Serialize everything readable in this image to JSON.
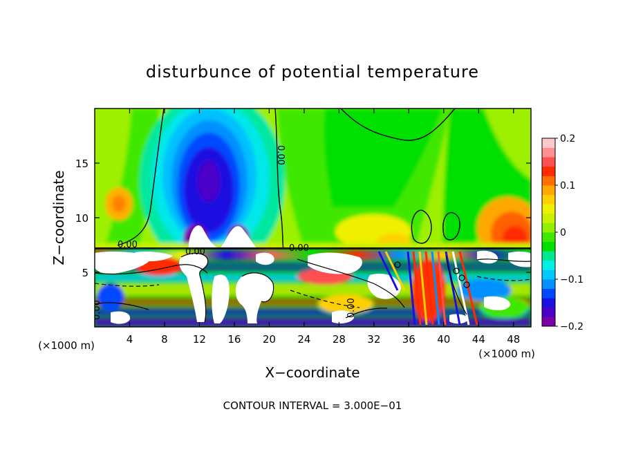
{
  "chart_data": {
    "type": "heatmap",
    "title": "disturbunce of potential temperature",
    "xlabel": "X−coordinate",
    "ylabel": "Z−coordinate",
    "x_unit": "(×1000 m)",
    "x_unit_right": "(×1000 m)",
    "xlim": [
      0,
      50
    ],
    "ylim": [
      0,
      20
    ],
    "x_ticks": [
      4,
      8,
      12,
      16,
      20,
      24,
      28,
      32,
      36,
      40,
      44,
      48
    ],
    "x_tick_labels": [
      "4",
      "8",
      "12",
      "16",
      "20",
      "24",
      "28",
      "32",
      "36",
      "40",
      "44",
      "48"
    ],
    "y_ticks": [
      5,
      10,
      15
    ],
    "y_tick_labels": [
      "5",
      "10",
      "15"
    ],
    "colorbar": {
      "range": [
        -0.2,
        0.2
      ],
      "ticks": [
        0.2,
        0.1,
        0,
        -0.1,
        -0.2
      ],
      "tick_labels": [
        "0.2",
        "0.1",
        "0",
        "−0.1",
        "−0.2"
      ],
      "colors": [
        "#7a00a8",
        "#4b00c8",
        "#1a10e0",
        "#0048ff",
        "#0090ff",
        "#00c8ff",
        "#00f0e8",
        "#00e890",
        "#00e000",
        "#40e800",
        "#90f000",
        "#c8f000",
        "#f0f000",
        "#ffd000",
        "#ffa800",
        "#ff7000",
        "#ff2a00",
        "#ff5050",
        "#ff9090",
        "#ffc8c8"
      ]
    },
    "contour_labels": [
      "0.00",
      "0.00",
      "0.00",
      "0.00",
      "0.00",
      "0.00",
      "0.00"
    ],
    "footnote": "CONTOUR INTERVAL = 3.000E−01",
    "grid": false,
    "legend": "none"
  }
}
